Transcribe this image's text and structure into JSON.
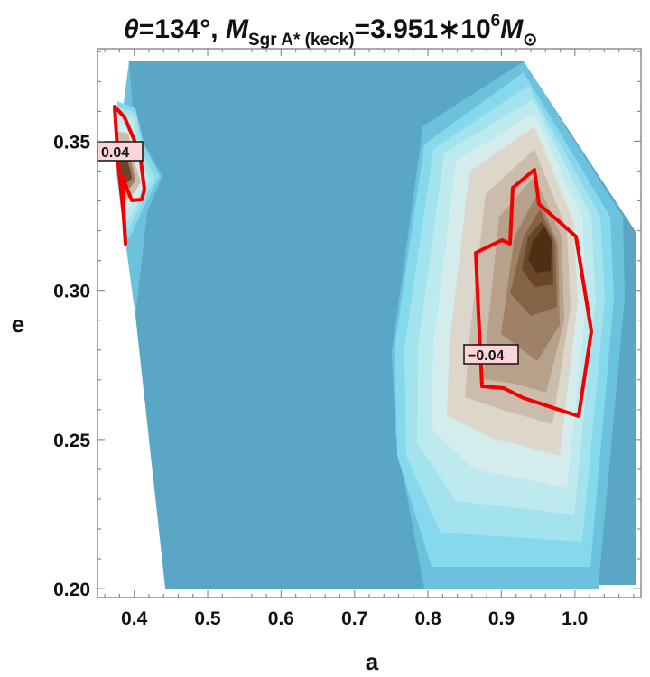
{
  "chart_data": {
    "type": "contour",
    "title": {
      "theta": "θ",
      "theta_value": "=134°, ",
      "M": "M",
      "M_sub": "Sgr A* (keck)",
      "M_value": "=3.951∗10",
      "exponent": "6",
      "M2": "M",
      "M2_sub": "⊙"
    },
    "xlabel": "a",
    "ylabel": "e",
    "xlim": [
      0.35,
      1.09
    ],
    "ylim": [
      0.197,
      0.381
    ],
    "xticks": [
      "0.4",
      "0.5",
      "0.6",
      "0.7",
      "0.8",
      "0.9",
      "1.0"
    ],
    "xtick_values": [
      0.4,
      0.5,
      0.6,
      0.7,
      0.8,
      0.9,
      1.0
    ],
    "yticks": [
      "0.20",
      "0.25",
      "0.30",
      "0.35"
    ],
    "ytick_values": [
      0.2,
      0.25,
      0.3,
      0.35
    ],
    "contour_labels": [
      {
        "text": "0.04",
        "a": 0.38,
        "e": 0.349
      },
      {
        "text": "−0.04",
        "a": 0.879,
        "e": 0.279
      }
    ],
    "colors": {
      "background": "#5aa6c6",
      "cyan_1": "#6cc2dc",
      "cyan_2": "#86d8ec",
      "cyan_3": "#a3e3ee",
      "cyan_4": "#bdeaee",
      "cyan_5": "#d4ecec",
      "brown_1": "#ddd6cb",
      "brown_2": "#cbbcab",
      "brown_3": "#b7a18b",
      "brown_4": "#9f8266",
      "brown_5": "#856346",
      "brown_6": "#6a4626",
      "brown_7": "#4f2f14",
      "zero_contour": "#f00000",
      "label_box": "#fbd5da"
    }
  }
}
